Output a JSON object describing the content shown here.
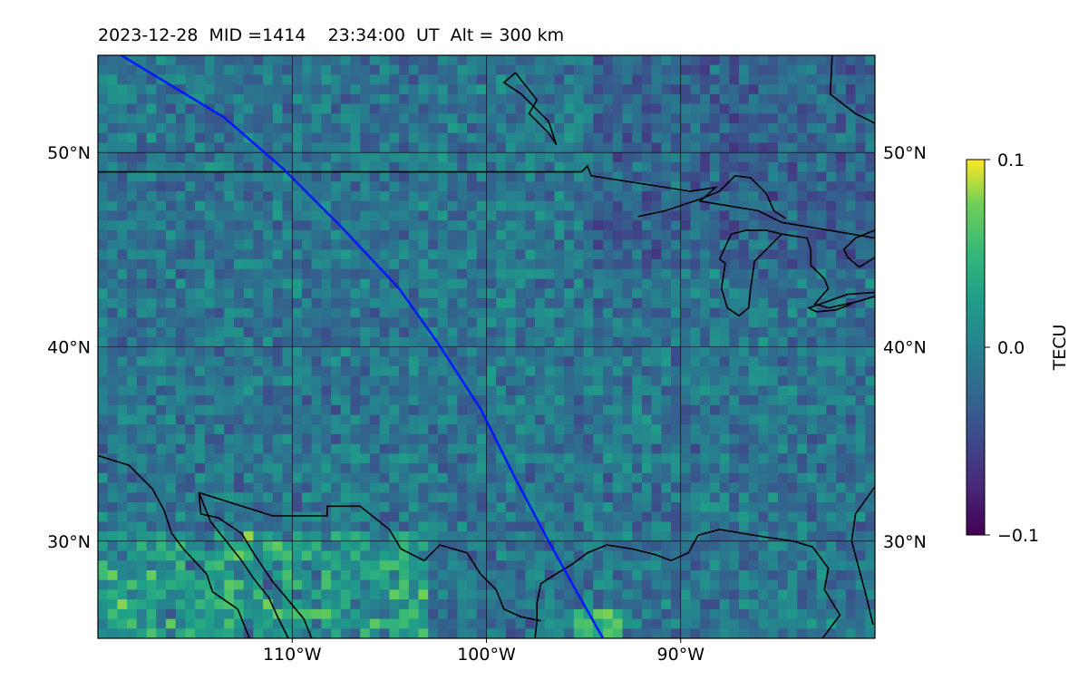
{
  "title": "2023-12-28  MID =1414    23:34:00  UT  Alt = 300 km",
  "map": {
    "lon_range": [
      -120,
      -80
    ],
    "lat_range": [
      25,
      55
    ],
    "lon_ticks": [
      {
        "value": -110,
        "label": "110°W"
      },
      {
        "value": -100,
        "label": "100°W"
      },
      {
        "value": -90,
        "label": "90°W"
      }
    ],
    "lat_ticks": [
      {
        "value": 30,
        "label": "30°N"
      },
      {
        "value": 40,
        "label": "40°N"
      },
      {
        "value": 50,
        "label": "50°N"
      }
    ],
    "gridlines": true,
    "colormap": "viridis",
    "track_color": "#0018ff",
    "track": [
      [
        -118.8,
        55
      ],
      [
        -113.5,
        51.8
      ],
      [
        -110.5,
        49.2
      ],
      [
        -107.5,
        46.2
      ],
      [
        -104.5,
        43.0
      ],
      [
        -102.5,
        40.2
      ],
      [
        -100.3,
        36.8
      ],
      [
        -98.5,
        33.2
      ],
      [
        -96.8,
        30.0
      ],
      [
        -95.3,
        27.3
      ],
      [
        -94.0,
        25
      ]
    ],
    "coastlines": [
      [
        [
          -120,
          49.0
        ],
        [
          -95.1,
          49.0
        ],
        [
          -94.8,
          49.3
        ],
        [
          -94.6,
          48.8
        ],
        [
          -89.5,
          48.0
        ],
        [
          -88.2,
          48.2
        ],
        [
          -89.0,
          47.5
        ],
        [
          -86.0,
          47.0
        ],
        [
          -84.8,
          46.4
        ],
        [
          -80,
          45.6
        ]
      ],
      [
        [
          -92.2,
          46.7
        ],
        [
          -90.8,
          47.0
        ],
        [
          -89.0,
          47.6
        ],
        [
          -88.0,
          48.0
        ],
        [
          -87.2,
          48.8
        ],
        [
          -86.4,
          48.7
        ],
        [
          -85.6,
          47.9
        ],
        [
          -85.2,
          47.0
        ],
        [
          -84.6,
          46.6
        ]
      ],
      [
        [
          -88.0,
          44.5
        ],
        [
          -87.4,
          45.8
        ],
        [
          -86.6,
          46.0
        ],
        [
          -85.6,
          46.0
        ],
        [
          -84.8,
          45.8
        ],
        [
          -86.2,
          44.4
        ],
        [
          -86.4,
          43.0
        ],
        [
          -86.5,
          42.0
        ],
        [
          -87.0,
          41.6
        ],
        [
          -87.6,
          42.0
        ],
        [
          -87.9,
          43.0
        ],
        [
          -87.7,
          44.3
        ],
        [
          -88.0,
          44.5
        ]
      ],
      [
        [
          -84.8,
          45.8
        ],
        [
          -83.5,
          45.6
        ],
        [
          -83.3,
          45.0
        ],
        [
          -83.3,
          44.2
        ],
        [
          -82.6,
          43.5
        ],
        [
          -82.4,
          43.0
        ],
        [
          -83.1,
          42.2
        ],
        [
          -82.4,
          42.0
        ],
        [
          -81.0,
          42.3
        ],
        [
          -80,
          42.6
        ]
      ],
      [
        [
          -81.2,
          42.2
        ],
        [
          -82.0,
          41.9
        ],
        [
          -83.0,
          41.8
        ],
        [
          -83.4,
          42.0
        ],
        [
          -81.4,
          42.7
        ],
        [
          -80,
          42.8
        ]
      ],
      [
        [
          -80,
          46.0
        ],
        [
          -81.0,
          45.6
        ],
        [
          -81.6,
          45.0
        ],
        [
          -81.4,
          44.6
        ],
        [
          -80.8,
          44.1
        ],
        [
          -80,
          44.6
        ]
      ],
      [
        [
          -80,
          51.5
        ],
        [
          -81.0,
          52.0
        ],
        [
          -82.3,
          53.0
        ],
        [
          -82.2,
          55
        ]
      ],
      [
        [
          -98.5,
          54.1
        ],
        [
          -97.4,
          52.7
        ],
        [
          -97.8,
          52.0
        ],
        [
          -96.8,
          51.0
        ],
        [
          -96.4,
          50.4
        ],
        [
          -96.8,
          51.6
        ],
        [
          -98.2,
          53.0
        ],
        [
          -99.1,
          53.6
        ],
        [
          -98.5,
          54.1
        ]
      ],
      [
        [
          -80,
          32.8
        ],
        [
          -81.0,
          31.4
        ],
        [
          -81.2,
          30.0
        ],
        [
          -80.4,
          27.0
        ],
        [
          -80.1,
          25.7
        ]
      ],
      [
        [
          -82.7,
          25
        ],
        [
          -81.8,
          26.2
        ],
        [
          -82.6,
          27.5
        ],
        [
          -82.4,
          28.6
        ],
        [
          -83.2,
          29.7
        ],
        [
          -84.2,
          30.0
        ],
        [
          -85.6,
          30.2
        ],
        [
          -86.8,
          30.4
        ],
        [
          -88.0,
          30.6
        ],
        [
          -89.1,
          30.3
        ]
      ],
      [
        [
          -89.1,
          30.3
        ],
        [
          -89.6,
          29.4
        ],
        [
          -90.5,
          29.0
        ],
        [
          -91.3,
          29.3
        ],
        [
          -92.5,
          29.6
        ],
        [
          -93.8,
          29.8
        ],
        [
          -94.8,
          29.4
        ],
        [
          -95.6,
          28.8
        ],
        [
          -96.6,
          28.2
        ],
        [
          -97.2,
          27.8
        ],
        [
          -97.4,
          26.8
        ],
        [
          -97.4,
          25.9
        ],
        [
          -97.5,
          25
        ]
      ],
      [
        [
          -97.2,
          25.9
        ],
        [
          -98.2,
          26.1
        ],
        [
          -99.1,
          26.5
        ],
        [
          -99.5,
          27.5
        ],
        [
          -100.3,
          28.3
        ],
        [
          -101.0,
          29.4
        ],
        [
          -102.4,
          29.8
        ],
        [
          -103.2,
          29.0
        ],
        [
          -104.4,
          29.6
        ],
        [
          -105.0,
          30.6
        ],
        [
          -106.5,
          31.8
        ],
        [
          -108.2,
          31.8
        ],
        [
          -108.2,
          31.3
        ],
        [
          -111.0,
          31.3
        ],
        [
          -114.8,
          32.5
        ]
      ],
      [
        [
          -120,
          34.4
        ],
        [
          -118.4,
          33.9
        ],
        [
          -117.2,
          32.7
        ],
        [
          -116.6,
          31.6
        ],
        [
          -116.2,
          30.4
        ],
        [
          -115.6,
          29.6
        ],
        [
          -114.4,
          28.3
        ],
        [
          -114.1,
          27.4
        ],
        [
          -112.8,
          26.5
        ],
        [
          -112.2,
          25
        ]
      ],
      [
        [
          -114.8,
          32.5
        ],
        [
          -114.7,
          31.4
        ],
        [
          -113.8,
          31.2
        ],
        [
          -112.6,
          30.4
        ],
        [
          -112.0,
          29.4
        ],
        [
          -111.0,
          27.9
        ],
        [
          -110.4,
          27.2
        ],
        [
          -109.4,
          26.0
        ],
        [
          -109.0,
          25
        ]
      ],
      [
        [
          -114.8,
          32.5
        ],
        [
          -114.2,
          31.0
        ],
        [
          -113.4,
          30.0
        ],
        [
          -112.6,
          29.0
        ],
        [
          -112.0,
          28.1
        ],
        [
          -111.2,
          27.1
        ],
        [
          -110.7,
          26.0
        ],
        [
          -110.2,
          25
        ]
      ]
    ]
  },
  "colorbar": {
    "label": "TECU",
    "min": -0.1,
    "max": 0.1,
    "ticks": [
      {
        "value": 0.1,
        "label": "0.1"
      },
      {
        "value": 0.0,
        "label": "0.0"
      },
      {
        "value": -0.1,
        "label": "−0.1"
      }
    ]
  }
}
